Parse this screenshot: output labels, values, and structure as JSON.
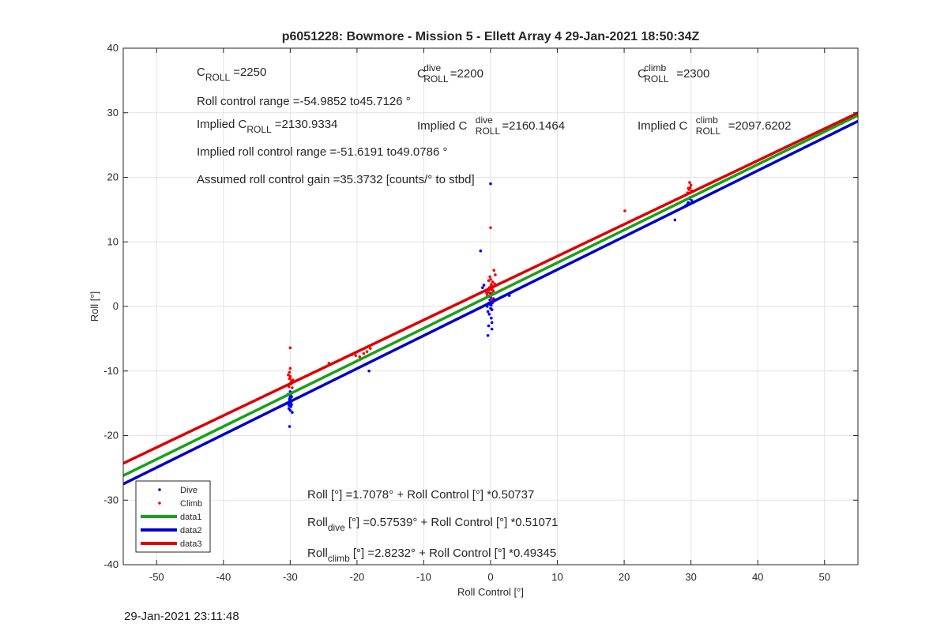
{
  "chart_data": {
    "type": "scatter",
    "title": "p6051228: Bowmore - Mission 5 - Ellett Array 4 29-Jan-2021 18:50:34Z",
    "xlabel": "Roll Control [°]",
    "ylabel": "Roll [°]",
    "xlim": [
      -55,
      55
    ],
    "ylim": [
      -40,
      40
    ],
    "xticks": [
      -50,
      -40,
      -30,
      -20,
      -10,
      0,
      10,
      20,
      30,
      40,
      50
    ],
    "yticks": [
      -40,
      -30,
      -20,
      -10,
      0,
      10,
      20,
      30,
      40
    ],
    "grid": true,
    "legend_position": "bottom-left",
    "series": [
      {
        "name": "Dive",
        "kind": "points",
        "color": "#0000ff",
        "x": [
          -30.1,
          -30.0,
          -29.9,
          -30.2,
          -30.0,
          -29.8,
          -30.1,
          -29.9,
          -30.0,
          -30.2,
          -29.7,
          -30.3,
          -30.0,
          -29.9,
          -30.1,
          -30.0,
          -29.8,
          -30.0,
          -29.9,
          -30.1,
          -30.0,
          -18.2,
          -0.5,
          -0.3,
          -0.1,
          0.0,
          0.1,
          0.2,
          0.3,
          -0.2,
          0.0,
          0.4,
          -0.4,
          0.1,
          -0.1,
          0.2,
          0.0,
          -0.3,
          0.3,
          0.5,
          0.0,
          -1.2,
          -1.0,
          -0.4,
          0.2,
          -1.5,
          0.0,
          0.6,
          2.8,
          27.6,
          29.2,
          29.6,
          29.8,
          30.1,
          29.5,
          29.9
        ],
        "y": [
          -14.3,
          -14.6,
          -14.9,
          -15.3,
          -13.9,
          -14.0,
          -14.5,
          -15.5,
          -16.1,
          -15.8,
          -16.4,
          -13.6,
          -13.2,
          -14.8,
          -15.0,
          -14.2,
          -15.2,
          -14.7,
          -13.8,
          -18.6,
          -14.4,
          -10.0,
          0.0,
          0.5,
          1.0,
          1.5,
          0.2,
          -0.5,
          0.8,
          -1.2,
          2.0,
          1.2,
          -0.8,
          -1.8,
          0.3,
          -2.5,
          3.0,
          -3.0,
          0.6,
          1.1,
          -0.3,
          2.9,
          3.3,
          -4.5,
          -3.5,
          8.6,
          19.0,
          0.9,
          1.7,
          13.4,
          15.6,
          16.1,
          16.7,
          16.4,
          15.9,
          16.9
        ]
      },
      {
        "name": "Climb",
        "kind": "points",
        "color": "#ff0000",
        "x": [
          -30.1,
          -30.0,
          -29.9,
          -30.2,
          -29.8,
          -30.0,
          -30.1,
          -29.9,
          -30.0,
          -29.7,
          -30.3,
          -30.0,
          -29.6,
          -24.2,
          -20.8,
          -20.2,
          -19.6,
          -19.0,
          -18.5,
          -18.0,
          -0.5,
          -0.3,
          -0.1,
          0.0,
          0.1,
          0.2,
          0.3,
          -0.2,
          0.0,
          0.4,
          -0.4,
          0.1,
          -0.1,
          0.2,
          0.0,
          0.5,
          -0.6,
          0.6,
          0.2,
          -0.3,
          0.1,
          0.3,
          0.7,
          20.1,
          29.5,
          29.7,
          29.9,
          30.0,
          29.8,
          30.1,
          29.6
        ],
        "y": [
          -11.2,
          -10.8,
          -11.8,
          -12.4,
          -11.5,
          -9.6,
          -10.2,
          -12.0,
          -11.0,
          -12.6,
          -10.6,
          -6.4,
          -11.4,
          -8.8,
          -7.5,
          -7.6,
          -7.8,
          -7.3,
          -7.0,
          -6.5,
          1.8,
          2.2,
          2.6,
          3.0,
          3.4,
          2.0,
          3.8,
          2.9,
          4.2,
          2.4,
          1.5,
          3.2,
          4.6,
          2.7,
          12.2,
          5.6,
          2.1,
          3.5,
          1.2,
          4.0,
          0.9,
          2.5,
          4.9,
          14.8,
          17.6,
          18.1,
          18.4,
          18.8,
          19.2,
          17.9,
          18.3
        ]
      },
      {
        "name": "data1",
        "kind": "line",
        "color": "#1aa01a",
        "x": [
          -55,
          55
        ],
        "y": [
          -26.2,
          29.6
        ]
      },
      {
        "name": "data2",
        "kind": "line",
        "color": "#0000cc",
        "x": [
          -55,
          55
        ],
        "y": [
          -27.5,
          28.7
        ]
      },
      {
        "name": "data3",
        "kind": "line",
        "color": "#dd0000",
        "x": [
          -55,
          55
        ],
        "y": [
          -24.3,
          30.0
        ]
      }
    ],
    "annotations": {
      "c_roll": {
        "main": "C",
        "sub": "ROLL",
        "rest": "=2250"
      },
      "c_roll_dive": {
        "main": "C",
        "sup": "dive",
        "sub": "ROLL",
        "rest": "=2200"
      },
      "c_roll_climb": {
        "main": "C",
        "sup": "climb",
        "sub": "ROLL",
        "rest": "=2300"
      },
      "roll_range": "Roll control range =-54.9852 to45.7126 °",
      "implied_c_roll": {
        "main": "Implied C",
        "sub": "ROLL",
        "rest": "=2130.9334"
      },
      "implied_c_roll_dive": {
        "main": "Implied C",
        "sup": "dive",
        "sub": "ROLL",
        "rest": "=2160.1464"
      },
      "implied_c_roll_climb": {
        "main": "Implied C",
        "sup": "climb",
        "sub": "ROLL",
        "rest": "=2097.6202"
      },
      "implied_range": "Implied roll control range =-51.6191 to49.0786 °",
      "gain": "Assumed roll control gain =35.3732 [counts/° to stbd]",
      "fit_all": {
        "main": "Roll [°] =1.7078° + Roll Control [°] *0.50737"
      },
      "fit_dive": {
        "main": "Roll",
        "sub": "dive",
        "rest": "[°] =0.57539° + Roll Control [°] *0.51071"
      },
      "fit_climb": {
        "main": "Roll",
        "sub": "climb",
        "rest": "[°] =2.8232° + Roll Control [°] *0.49345"
      }
    }
  },
  "footer": {
    "timestamp": "29-Jan-2021 23:11:48"
  }
}
